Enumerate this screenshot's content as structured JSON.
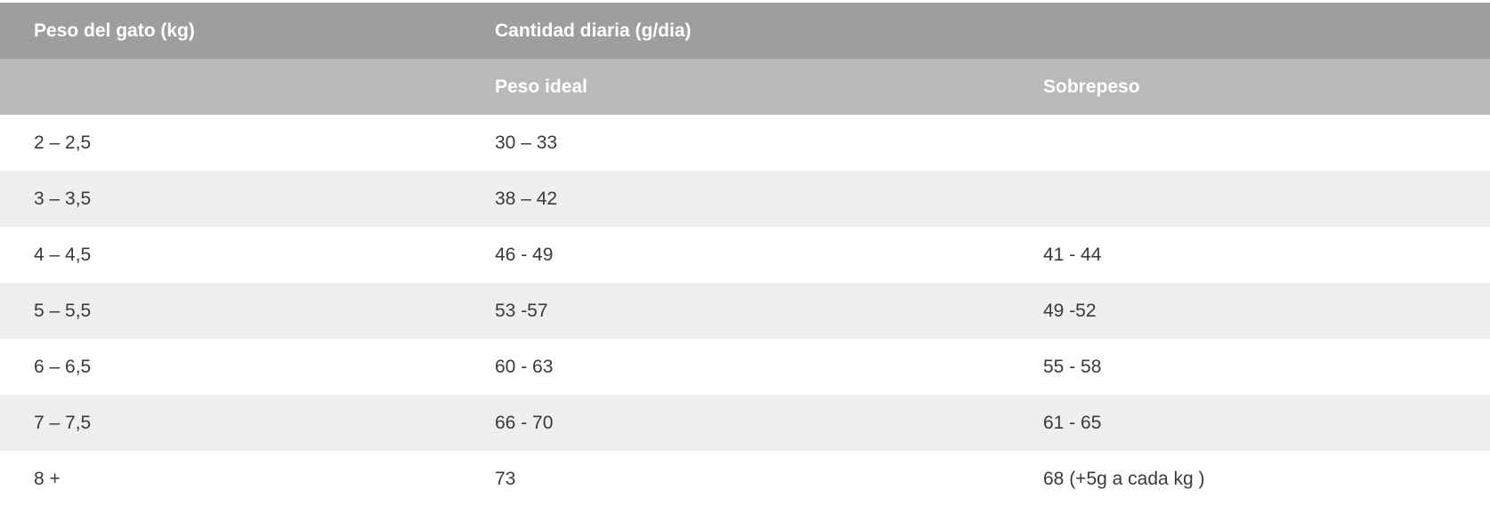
{
  "table": {
    "header": {
      "weight_col": "Peso del gato (kg)",
      "quantity_group": "Cantidad diaria (g/dia)",
      "sub_ideal": "Peso ideal",
      "sub_overweight": "Sobrepeso"
    },
    "rows": [
      {
        "weight": "2 – 2,5",
        "ideal": "30 – 33",
        "overweight": ""
      },
      {
        "weight": "3 – 3,5",
        "ideal": "38 – 42",
        "overweight": ""
      },
      {
        "weight": "4 – 4,5",
        "ideal": "46 - 49",
        "overweight": "41 - 44"
      },
      {
        "weight": "5 – 5,5",
        "ideal": "53 -57",
        "overweight": "49 -52"
      },
      {
        "weight": "6 – 6,5",
        "ideal": "60 - 63",
        "overweight": "55 - 58"
      },
      {
        "weight": "7 – 7,5",
        "ideal": "66 - 70",
        "overweight": "61 - 65"
      },
      {
        "weight": "8 +",
        "ideal": "73",
        "overweight": "68 (+5g a cada kg )"
      }
    ],
    "colors": {
      "header_main_bg": "#9e9e9e",
      "header_sub_bg": "#b9b9b9",
      "row_alt_bg": "#efefef",
      "row_bg": "#ffffff",
      "header_text": "#ffffff",
      "body_text": "#3a3a3a"
    }
  }
}
